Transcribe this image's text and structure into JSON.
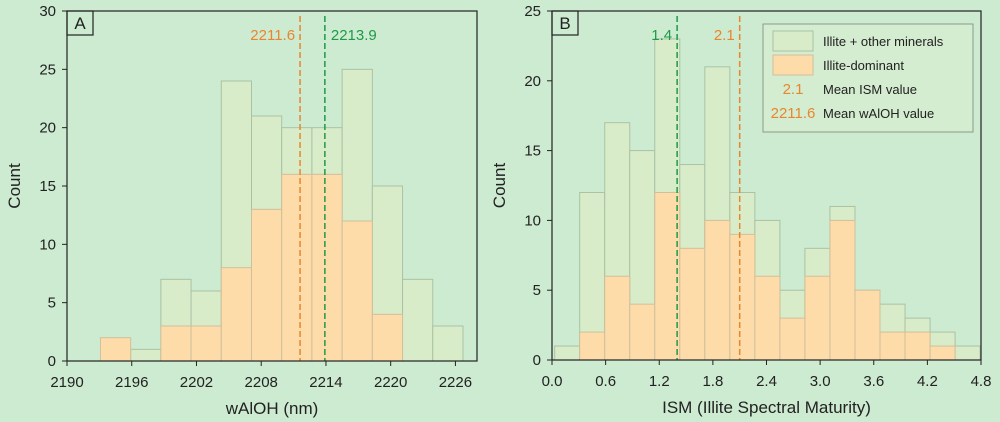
{
  "colors": {
    "background": "#cdebd1",
    "illite_other_fill": "#d9ecc9",
    "illite_other_stroke": "#a9c2a4",
    "illite_dominant_fill": "#fddcaa",
    "illite_dominant_stroke": "#cfc09b",
    "mean_orange": "#e8862e",
    "mean_green": "#1e9a45",
    "axis": "#222222"
  },
  "legend": {
    "items": [
      {
        "label": "Illite + other minerals",
        "kind": "illite_other"
      },
      {
        "label": "Illite-dominant",
        "kind": "illite_dominant"
      },
      {
        "marker": "2.1",
        "label": "Mean ISM value",
        "kind": "text_orange"
      },
      {
        "marker": "2211.6",
        "label": "Mean wAlOH value",
        "kind": "text_orange"
      }
    ]
  },
  "chart_data": [
    {
      "type": "bar",
      "panel": "A",
      "xlabel": "wAlOH (nm)",
      "ylabel": "Count",
      "xlim": [
        2190,
        2228
      ],
      "ylim": [
        0,
        30
      ],
      "xticks": [
        "2190",
        "2196",
        "2202",
        "2208",
        "2214",
        "2220",
        "2226"
      ],
      "yticks": [
        "0",
        "5",
        "10",
        "15",
        "20",
        "25",
        "30"
      ],
      "bin_width": 2.8,
      "bin_starts": [
        2193.1,
        2195.9,
        2198.7,
        2201.5,
        2204.3,
        2207.1,
        2209.9,
        2212.7,
        2215.5,
        2218.3,
        2221.1,
        2223.9,
        2226.7
      ],
      "series": [
        {
          "name": "Illite + other minerals",
          "values": [
            0,
            1,
            7,
            6,
            24,
            21,
            20,
            20,
            25,
            15,
            7,
            3,
            0
          ]
        },
        {
          "name": "Illite-dominant",
          "values": [
            2,
            0,
            3,
            3,
            8,
            13,
            16,
            16,
            12,
            4,
            0,
            0,
            0
          ]
        }
      ],
      "means": [
        {
          "label": "2211.6",
          "value": 2211.6,
          "color": "orange"
        },
        {
          "label": "2213.9",
          "value": 2213.9,
          "color": "green"
        }
      ]
    },
    {
      "type": "bar",
      "panel": "B",
      "xlabel": "ISM (Illite Spectral Maturity)",
      "ylabel": "Count",
      "xlim": [
        0.0,
        4.8
      ],
      "ylim": [
        0,
        25
      ],
      "xticks": [
        "0.0",
        "0.6",
        "1.2",
        "1.8",
        "2.4",
        "3.0",
        "3.6",
        "4.2",
        "4.8"
      ],
      "yticks": [
        "0",
        "5",
        "10",
        "15",
        "20",
        "25"
      ],
      "bin_width": 0.28,
      "bin_starts": [
        0.03,
        0.31,
        0.59,
        0.87,
        1.15,
        1.43,
        1.71,
        1.99,
        2.27,
        2.55,
        2.83,
        3.11,
        3.39,
        3.67,
        3.95,
        4.23,
        4.51
      ],
      "series": [
        {
          "name": "Illite + other minerals",
          "values": [
            1,
            12,
            17,
            15,
            23,
            14,
            21,
            12,
            10,
            5,
            8,
            11,
            5,
            4,
            3,
            2,
            1
          ]
        },
        {
          "name": "Illite-dominant",
          "values": [
            0,
            2,
            6,
            4,
            12,
            8,
            10,
            9,
            6,
            3,
            6,
            10,
            5,
            2,
            2,
            1,
            0
          ]
        }
      ],
      "means": [
        {
          "label": "1.4",
          "value": 1.4,
          "color": "green"
        },
        {
          "label": "2.1",
          "value": 2.1,
          "color": "orange"
        }
      ]
    }
  ]
}
